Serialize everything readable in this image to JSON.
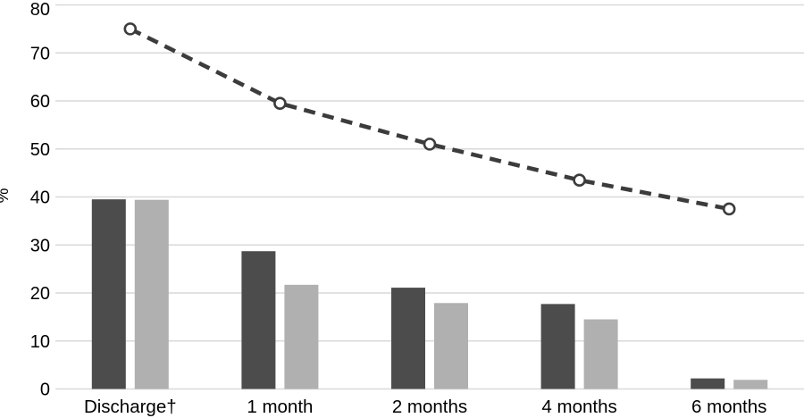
{
  "chart_data": {
    "type": "bar+line",
    "title": "",
    "xlabel": "",
    "ylabel": "%",
    "ylim": [
      0,
      80
    ],
    "yticks": [
      0,
      10,
      20,
      30,
      40,
      50,
      60,
      70,
      80
    ],
    "grid": "horizontal",
    "legend": "none",
    "categories": [
      "Discharge†",
      "1 month",
      "2 months",
      "4 months",
      "6 months"
    ],
    "series": [
      {
        "name": "dark-gray-bars",
        "type": "bar",
        "color": "#4c4c4c",
        "values": [
          39.5,
          28.7,
          21.1,
          17.7,
          2.2
        ]
      },
      {
        "name": "light-gray-bars",
        "type": "bar",
        "color": "#b0b0b0",
        "values": [
          39.4,
          21.7,
          17.9,
          14.5,
          1.9
        ]
      },
      {
        "name": "dashed-line",
        "type": "line",
        "color": "#3c3c3c",
        "marker": "open-circle",
        "marker_fill": "#ffffff",
        "values": [
          75,
          59.5,
          51,
          43.5,
          37.5
        ]
      }
    ],
    "colors": {
      "gridline": "#d9d9d9",
      "text": "#000000",
      "background": "#ffffff"
    }
  }
}
